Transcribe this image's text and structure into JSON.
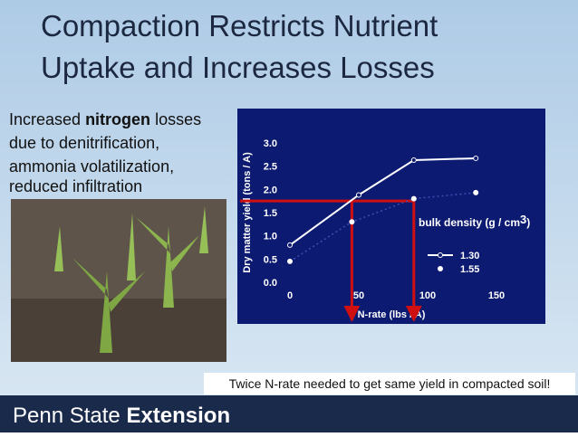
{
  "title": [
    "Compaction Restricts Nutrient",
    "Uptake and Increases Losses"
  ],
  "body": [
    "Increased ",
    "nitrogen",
    " losses",
    "due to denitrification,",
    "ammonia volatilization,",
    "reduced infiltration"
  ],
  "caption": "Twice N-rate needed to get same yield in compacted soil!",
  "footer": [
    "Penn State ",
    "Extension"
  ],
  "chart_data": {
    "type": "line",
    "x_label": "N-rate (lbs / A)",
    "y_label": "Dry matter yield (tons / A)",
    "legend_title": [
      "bulk density (g / cm",
      "3",
      ")"
    ],
    "xlim": [
      0,
      150
    ],
    "xticks": [
      0,
      50,
      100,
      150
    ],
    "ylim": [
      0,
      3.0
    ],
    "yticks": [
      {
        "value": 0,
        "label": "0.0"
      },
      {
        "value": 0.5,
        "label": "0.5"
      },
      {
        "value": 1.0,
        "label": "1.0"
      },
      {
        "value": 1.5,
        "label": "1.5"
      },
      {
        "value": 2.0,
        "label": "2.0"
      },
      {
        "value": 2.5,
        "label": "2.5"
      },
      {
        "value": 3.0,
        "label": "3.0"
      }
    ],
    "series": [
      {
        "name": "1.30",
        "color": "#ffffff",
        "line_color": "#ffffff",
        "dashed": false,
        "marker": "open",
        "x": [
          0,
          50,
          90,
          135
        ],
        "values": [
          0.8,
          1.88,
          2.63,
          2.67
        ]
      },
      {
        "name": "1.55",
        "color": "#ffffff",
        "line_color": "#3a4fb0",
        "dashed": true,
        "marker": "filled",
        "x": [
          0,
          45,
          90,
          135
        ],
        "values": [
          0.45,
          1.3,
          1.8,
          1.93
        ]
      }
    ],
    "annotation_lines": {
      "y": 1.75,
      "x": [
        45,
        90
      ],
      "color": "#d01010"
    }
  }
}
